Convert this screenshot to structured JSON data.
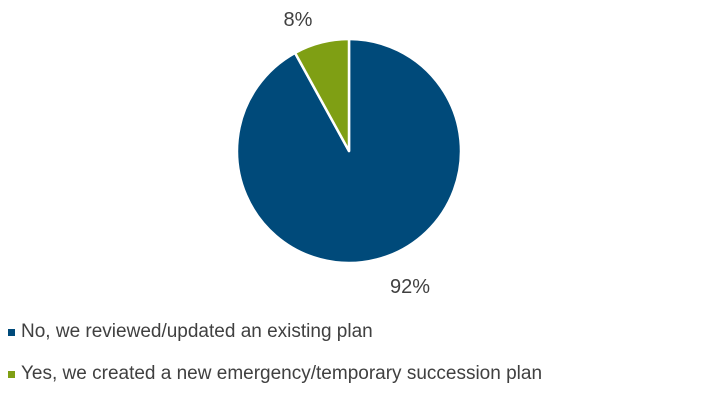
{
  "chart_data": {
    "type": "pie",
    "slices": [
      {
        "label": "No, we reviewed/updated an existing plan",
        "value": 92,
        "display": "92%",
        "color": "#004a7a"
      },
      {
        "label": "Yes, we created a new emergency/temporary succession plan",
        "value": 8,
        "display": "8%",
        "color": "#7f9f14"
      }
    ],
    "start_angle_deg": 0,
    "direction": "clockwise",
    "legend_position": "bottom-left",
    "border_color": "#ffffff"
  }
}
